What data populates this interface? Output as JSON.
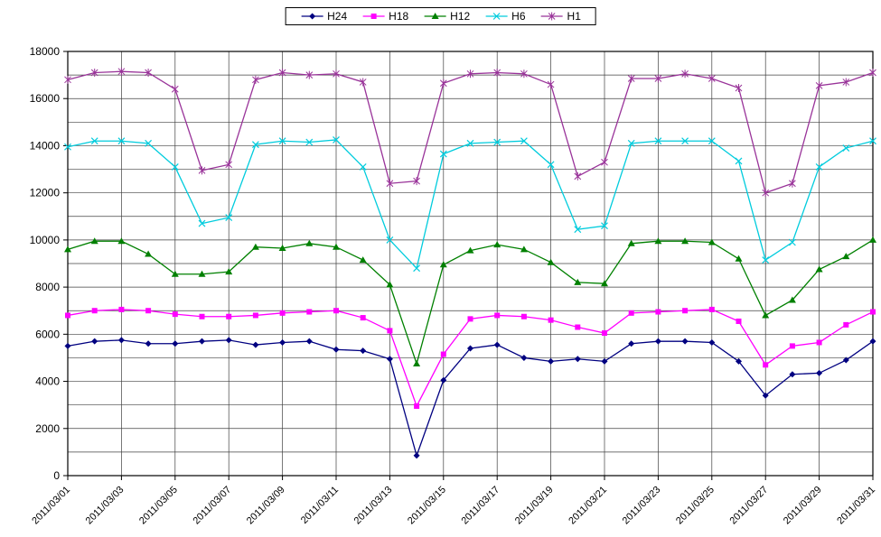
{
  "colors": {
    "background": "#FFFFFF",
    "grid": "#404040",
    "axis": "#000000",
    "legend_border": "#000000"
  },
  "chart_data": {
    "type": "line",
    "title": "",
    "xlabel": "",
    "ylabel": "",
    "ylim": [
      0,
      18000
    ],
    "y_tick_step": 2000,
    "y_minor_step": 1000,
    "x_tick_step": 2,
    "grid": true,
    "legend_position": "top",
    "x": [
      "2011/03/01",
      "2011/03/02",
      "2011/03/03",
      "2011/03/04",
      "2011/03/05",
      "2011/03/06",
      "2011/03/07",
      "2011/03/08",
      "2011/03/09",
      "2011/03/10",
      "2011/03/11",
      "2011/03/12",
      "2011/03/13",
      "2011/03/14",
      "2011/03/15",
      "2011/03/16",
      "2011/03/17",
      "2011/03/18",
      "2011/03/19",
      "2011/03/20",
      "2011/03/21",
      "2011/03/22",
      "2011/03/23",
      "2011/03/24",
      "2011/03/25",
      "2011/03/26",
      "2011/03/27",
      "2011/03/28",
      "2011/03/29",
      "2011/03/30",
      "2011/03/31"
    ],
    "series": [
      {
        "name": "H24",
        "color": "#000080",
        "marker": "diamond",
        "values": [
          5500,
          5700,
          5750,
          5600,
          5600,
          5700,
          5750,
          5550,
          5650,
          5700,
          5350,
          5300,
          4950,
          850,
          4050,
          5400,
          5550,
          5000,
          4850,
          4950,
          4850,
          5600,
          5700,
          5700,
          5650,
          4850,
          3400,
          4300,
          4350,
          4900,
          5700
        ]
      },
      {
        "name": "H18",
        "color": "#FF00FF",
        "marker": "square",
        "values": [
          6800,
          7000,
          7050,
          7000,
          6850,
          6750,
          6750,
          6800,
          6900,
          6950,
          7000,
          6700,
          6150,
          2950,
          5150,
          6650,
          6800,
          6750,
          6600,
          6300,
          6050,
          6900,
          6950,
          7000,
          7050,
          6550,
          4700,
          5500,
          5650,
          6400,
          6950
        ]
      },
      {
        "name": "H12",
        "color": "#008000",
        "marker": "triangle",
        "values": [
          9600,
          9950,
          9950,
          9400,
          8550,
          8550,
          8650,
          9700,
          9650,
          9850,
          9700,
          9150,
          8100,
          4750,
          8950,
          9550,
          9800,
          9600,
          9050,
          8200,
          8150,
          9850,
          9950,
          9950,
          9900,
          9200,
          6800,
          7450,
          8750,
          9300,
          10000
        ]
      },
      {
        "name": "H6",
        "color": "#00CCDD",
        "marker": "x",
        "values": [
          13950,
          14200,
          14200,
          14100,
          13100,
          10700,
          10950,
          14050,
          14200,
          14150,
          14250,
          13100,
          10000,
          8800,
          13650,
          14100,
          14150,
          14200,
          13200,
          10450,
          10600,
          14100,
          14200,
          14200,
          14200,
          13350,
          9150,
          9900,
          13100,
          13900,
          14200
        ]
      },
      {
        "name": "H1",
        "color": "#993399",
        "marker": "star",
        "values": [
          16800,
          17100,
          17150,
          17100,
          16400,
          12950,
          13200,
          16800,
          17100,
          17000,
          17050,
          16700,
          12400,
          12500,
          16650,
          17050,
          17100,
          17050,
          16600,
          12700,
          13300,
          16850,
          16850,
          17050,
          16850,
          16450,
          12000,
          12400,
          16550,
          16700,
          17100
        ]
      }
    ]
  }
}
